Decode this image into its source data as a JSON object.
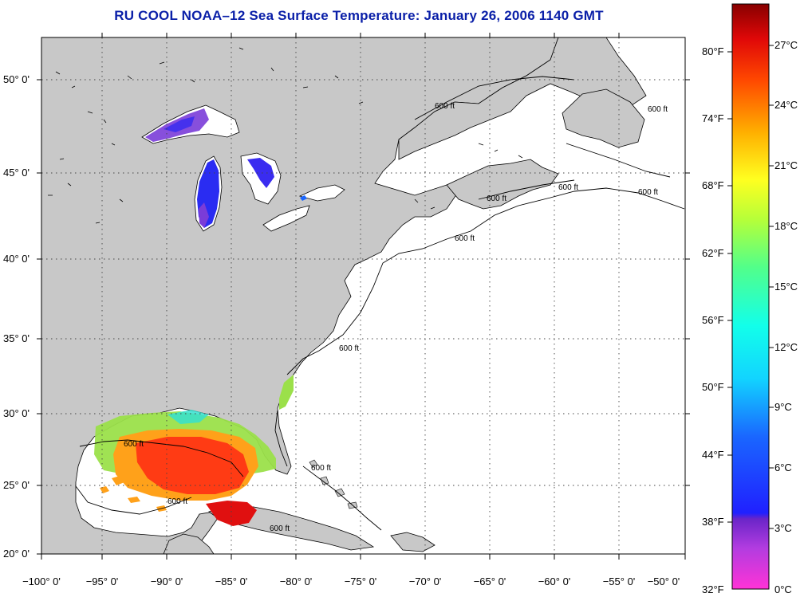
{
  "title": "RU COOL  NOAA–12  Sea Surface Temperature:  January 26, 2006 1140 GMT",
  "map": {
    "lat_ticks": [
      "50° 0'",
      "45° 0'",
      "40° 0'",
      "35° 0'",
      "30° 0'",
      "25° 0'",
      "20° 0'"
    ],
    "lon_ticks": [
      "−100° 0'",
      "−95° 0'",
      "−90° 0'",
      "−85° 0'",
      "−80° 0'",
      "−75° 0'",
      "−70° 0'",
      "−65° 0'",
      "−60° 0'",
      "−55° 0'",
      "−50° 0'"
    ],
    "contour_label": "600 ft",
    "colors": {
      "land": "#c8c8c8",
      "ocean": "#ffffff",
      "gridline": "#555555",
      "lake_cold": "#3a2cf0",
      "lake_purple": "#7a3cd8",
      "warm": "#ff3b14",
      "hot": "#e01010",
      "mild": "#ffa11a",
      "green": "#9be04a",
      "cyan": "#34e0d0"
    }
  },
  "colorbar": {
    "fahrenheit": [
      "80°F",
      "74°F",
      "68°F",
      "62°F",
      "56°F",
      "50°F",
      "44°F",
      "38°F",
      "32°F"
    ],
    "celsius": [
      "27°C",
      "24°C",
      "21°C",
      "18°C",
      "15°C",
      "12°C",
      "9°C",
      "6°C",
      "3°C",
      "0°C"
    ]
  }
}
